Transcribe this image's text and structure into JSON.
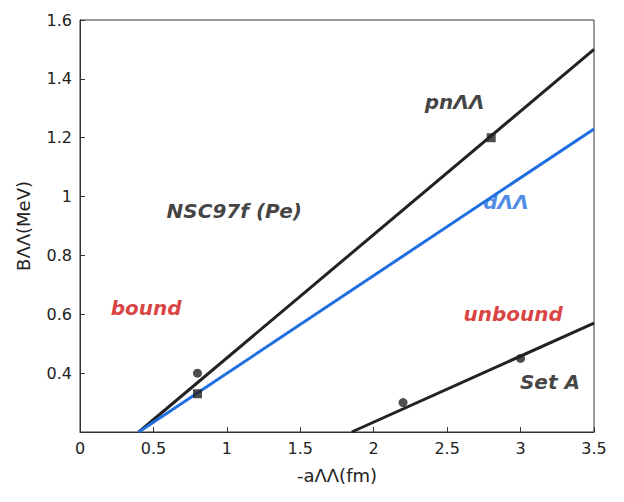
{
  "chart_data": {
    "type": "line",
    "x_label": "-aΛΛ(fm)",
    "y_label": "BΛΛ(MeV)",
    "xlim": [
      0,
      3.5
    ],
    "xticks": [
      0,
      0.5,
      1,
      1.5,
      2,
      2.5,
      3,
      3.5
    ],
    "ylim": [
      0.2,
      1.6
    ],
    "yticks": [
      0.4,
      0.6,
      0.8,
      1,
      1.2,
      1.4,
      1.6
    ],
    "grid": false,
    "series": [
      {
        "name": "pnΛΛ",
        "color": "#222222",
        "x": [
          0.4,
          3.5
        ],
        "values": [
          0.2,
          1.5
        ],
        "marker": "none",
        "line_style": "solid"
      },
      {
        "name": "dΛΛ",
        "color": "#1f6fe0",
        "x": [
          0.4,
          3.5
        ],
        "values": [
          0.2,
          1.23
        ],
        "marker": "none",
        "line_style": "solid"
      },
      {
        "name": "Set A",
        "color": "#222222",
        "x": [
          1.85,
          3.5
        ],
        "values": [
          0.2,
          0.57
        ],
        "marker": "none",
        "line_style": "solid"
      },
      {
        "type": "scatter",
        "color": "#222222",
        "marker": "circle",
        "x": [
          0.8,
          2.2,
          3.0
        ],
        "values": [
          0.4,
          0.3,
          0.45
        ]
      },
      {
        "type": "scatter",
        "color": "#222222",
        "marker": "square",
        "x": [
          0.8,
          2.8
        ],
        "values": [
          0.33,
          1.2
        ]
      }
    ],
    "annotations": [
      {
        "text": "pnΛΛ",
        "x": 2.55,
        "y": 1.32,
        "color": "#111111"
      },
      {
        "text": "dΛΛ",
        "x": 2.9,
        "y": 0.98,
        "color": "#1f6fe0"
      },
      {
        "text": "NSC97f (Pe)",
        "x": 1.05,
        "y": 0.95,
        "color": "#111111"
      },
      {
        "text": "bound",
        "x": 0.45,
        "y": 0.62,
        "color": "#d01010"
      },
      {
        "text": "unbound",
        "x": 2.95,
        "y": 0.6,
        "color": "#d01010"
      },
      {
        "text": "Set A",
        "x": 3.2,
        "y": 0.37,
        "color": "#111111"
      }
    ]
  }
}
